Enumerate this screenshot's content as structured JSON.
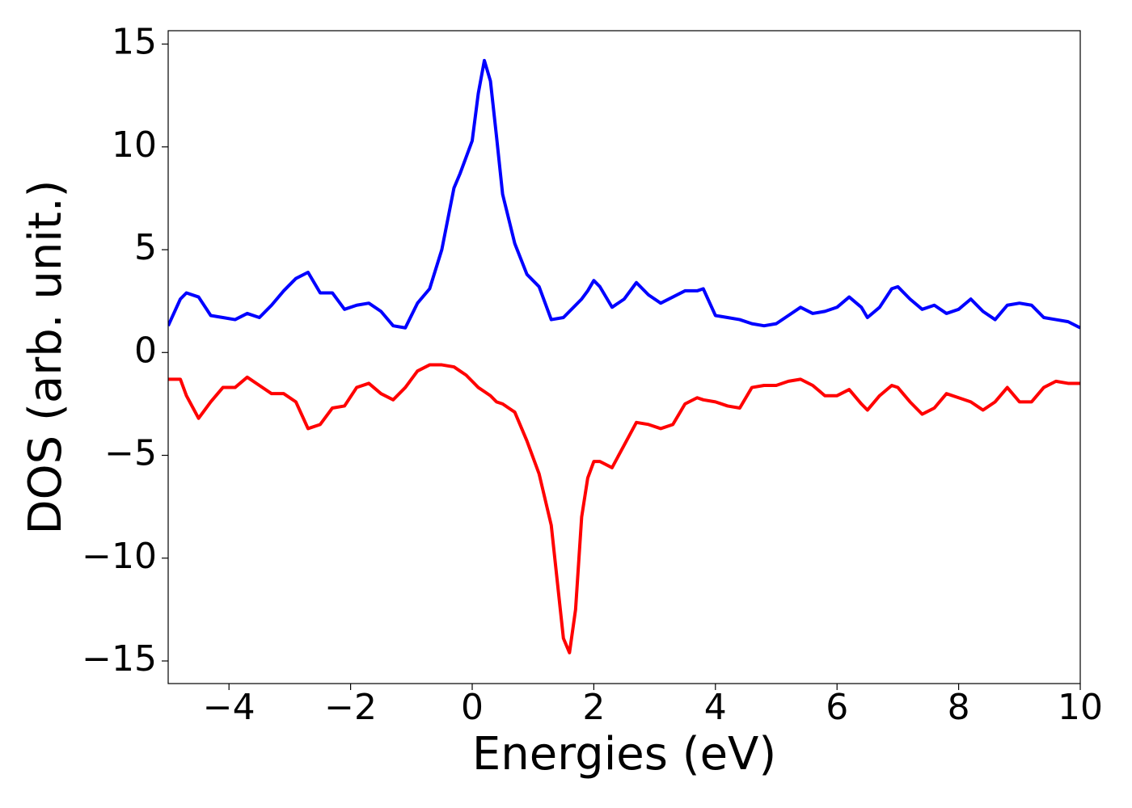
{
  "chart_data": {
    "type": "line",
    "xlabel": "Energies (eV)",
    "ylabel": "DOS (arb. unit.)",
    "x": [
      -5,
      -4.8,
      -4.7,
      -4.5,
      -4.3,
      -4.1,
      -3.9,
      -3.7,
      -3.5,
      -3.3,
      -3.1,
      -2.9,
      -2.7,
      -2.5,
      -2.3,
      -2.1,
      -1.9,
      -1.7,
      -1.5,
      -1.3,
      -1.1,
      -0.9,
      -0.7,
      -0.5,
      -0.3,
      -0.2,
      -0.1,
      0,
      0.1,
      0.2,
      0.3,
      0.4,
      0.5,
      0.7,
      0.9,
      1.1,
      1.3,
      1.5,
      1.6,
      1.7,
      1.8,
      1.9,
      2.0,
      2.1,
      2.3,
      2.5,
      2.7,
      2.9,
      3.1,
      3.3,
      3.5,
      3.7,
      3.8,
      4.0,
      4.2,
      4.4,
      4.6,
      4.8,
      5.0,
      5.2,
      5.4,
      5.6,
      5.8,
      6.0,
      6.2,
      6.4,
      6.5,
      6.7,
      6.9,
      7.0,
      7.2,
      7.4,
      7.6,
      7.8,
      8.0,
      8.2,
      8.4,
      8.6,
      8.8,
      9.0,
      9.2,
      9.4,
      9.6,
      9.8,
      10
    ],
    "series": [
      {
        "color": "#0000ff",
        "values": [
          1.3,
          2.6,
          2.9,
          2.7,
          1.8,
          1.7,
          1.6,
          1.9,
          1.7,
          2.3,
          3.0,
          3.6,
          3.9,
          2.9,
          2.9,
          2.1,
          2.3,
          2.4,
          2.0,
          1.3,
          1.2,
          2.4,
          3.1,
          5.0,
          8.0,
          8.7,
          9.5,
          10.3,
          12.6,
          14.2,
          13.2,
          10.5,
          7.7,
          5.3,
          3.8,
          3.2,
          1.6,
          1.7,
          2.0,
          2.3,
          2.6,
          3.0,
          3.5,
          3.2,
          2.2,
          2.6,
          3.4,
          2.8,
          2.4,
          2.7,
          3.0,
          3.0,
          3.1,
          1.8,
          1.7,
          1.6,
          1.4,
          1.3,
          1.4,
          1.8,
          2.2,
          1.9,
          2.0,
          2.2,
          2.7,
          2.2,
          1.7,
          2.2,
          3.1,
          3.2,
          2.6,
          2.1,
          2.3,
          1.9,
          2.1,
          2.6,
          2.0,
          1.6,
          2.3,
          2.4,
          2.3,
          1.7,
          1.6,
          1.5,
          1.2
        ]
      },
      {
        "color": "#ff0000",
        "values": [
          -1.3,
          -1.3,
          -2.1,
          -3.2,
          -2.4,
          -1.7,
          -1.7,
          -1.2,
          -1.6,
          -2.0,
          -2.0,
          -2.4,
          -3.7,
          -3.5,
          -2.7,
          -2.6,
          -1.7,
          -1.5,
          -2.0,
          -2.3,
          -1.7,
          -0.9,
          -0.6,
          -0.6,
          -0.7,
          -0.9,
          -1.1,
          -1.4,
          -1.7,
          -1.9,
          -2.1,
          -2.4,
          -2.5,
          -2.9,
          -4.3,
          -5.9,
          -8.4,
          -13.9,
          -14.6,
          -12.5,
          -8.0,
          -6.1,
          -5.3,
          -5.3,
          -5.6,
          -4.5,
          -3.4,
          -3.5,
          -3.7,
          -3.5,
          -2.5,
          -2.2,
          -2.3,
          -2.4,
          -2.6,
          -2.7,
          -1.7,
          -1.6,
          -1.6,
          -1.4,
          -1.3,
          -1.6,
          -2.1,
          -2.1,
          -1.8,
          -2.5,
          -2.8,
          -2.1,
          -1.6,
          -1.7,
          -2.4,
          -3.0,
          -2.7,
          -2.0,
          -2.2,
          -2.4,
          -2.8,
          -2.4,
          -1.7,
          -2.4,
          -2.4,
          -1.7,
          -1.4,
          -1.5,
          -1.5
        ]
      }
    ],
    "xlim": [
      -5,
      10
    ],
    "xticks": [
      {
        "value": -4,
        "label": "−4"
      },
      {
        "value": -2,
        "label": "−2"
      },
      0,
      2,
      4,
      6,
      8,
      10
    ],
    "ylim": [
      -16.1,
      15.65
    ],
    "yticks": [
      {
        "value": -15,
        "label": "−15"
      },
      {
        "value": -10,
        "label": "−10"
      },
      {
        "value": -5,
        "label": "−5"
      },
      0,
      5,
      10,
      15
    ],
    "grid": false
  }
}
